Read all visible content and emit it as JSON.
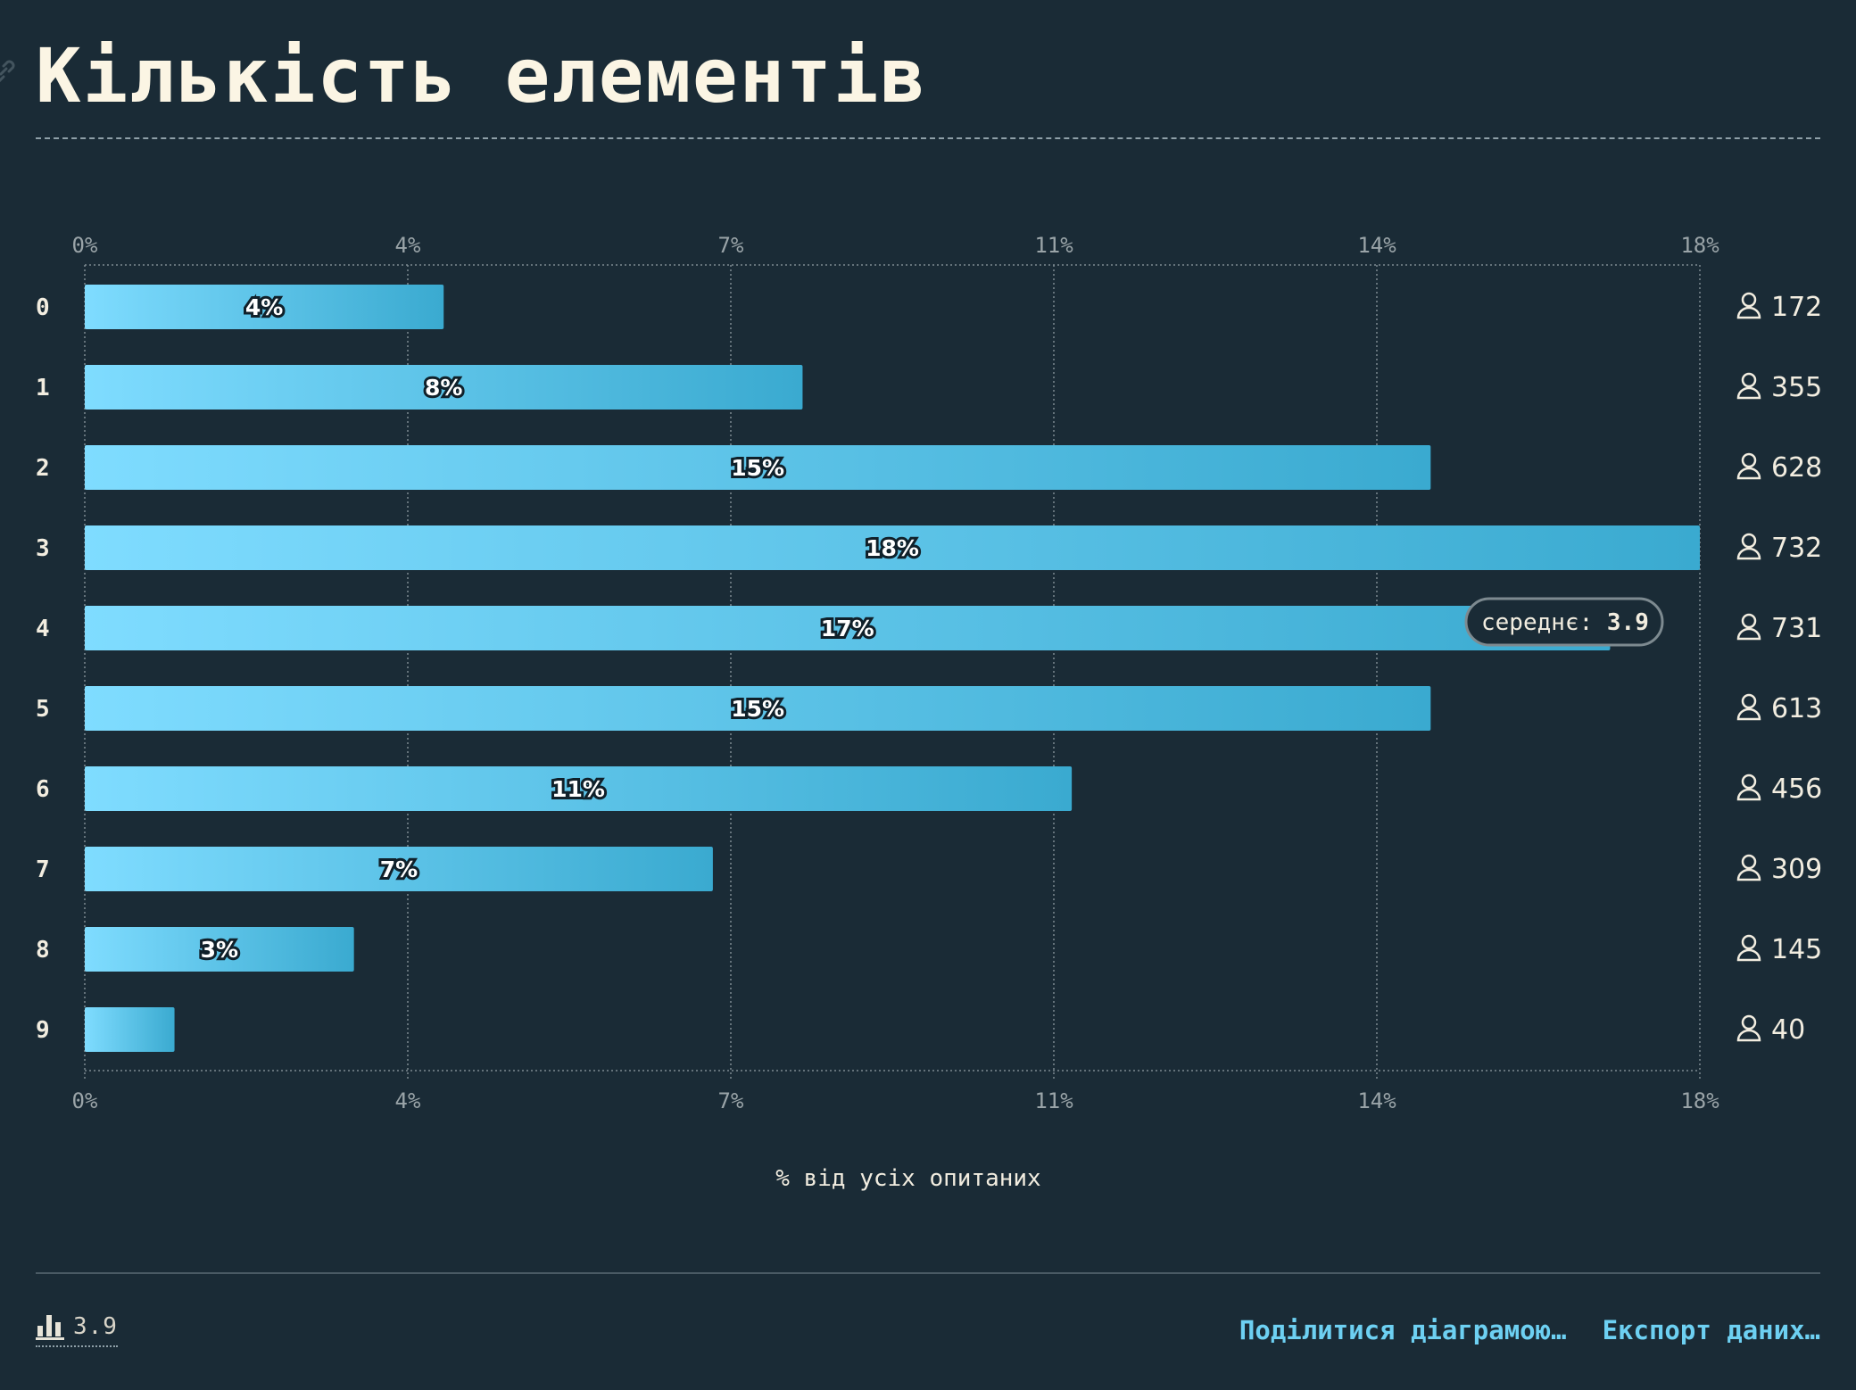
{
  "title": "Кількість елементів",
  "chart_data": {
    "type": "bar",
    "orientation": "horizontal",
    "categories": [
      "0",
      "1",
      "2",
      "3",
      "4",
      "5",
      "6",
      "7",
      "8",
      "9"
    ],
    "values": [
      4,
      8,
      15,
      18,
      17,
      15,
      11,
      7,
      3,
      1
    ],
    "value_labels": [
      "4%",
      "8%",
      "15%",
      "18%",
      "17%",
      "15%",
      "11%",
      "7%",
      "3%",
      ""
    ],
    "counts": [
      172,
      355,
      628,
      732,
      731,
      613,
      456,
      309,
      145,
      40
    ],
    "xticks": [
      "0%",
      "4%",
      "7%",
      "11%",
      "14%",
      "18%"
    ],
    "xlim": [
      0,
      18
    ],
    "xlabel": "% від усіх опитаних",
    "mean": {
      "label": "середнє:",
      "value": "3.9"
    },
    "grid": true,
    "colors": {
      "bar_start": "#7fdcff",
      "bar_end": "#3aaad0",
      "mean_line": "#5e6a70"
    }
  },
  "footer": {
    "stat_value": "3.9",
    "share_label": "Поділитися діаграмою…",
    "export_label": "Експорт даних…"
  }
}
